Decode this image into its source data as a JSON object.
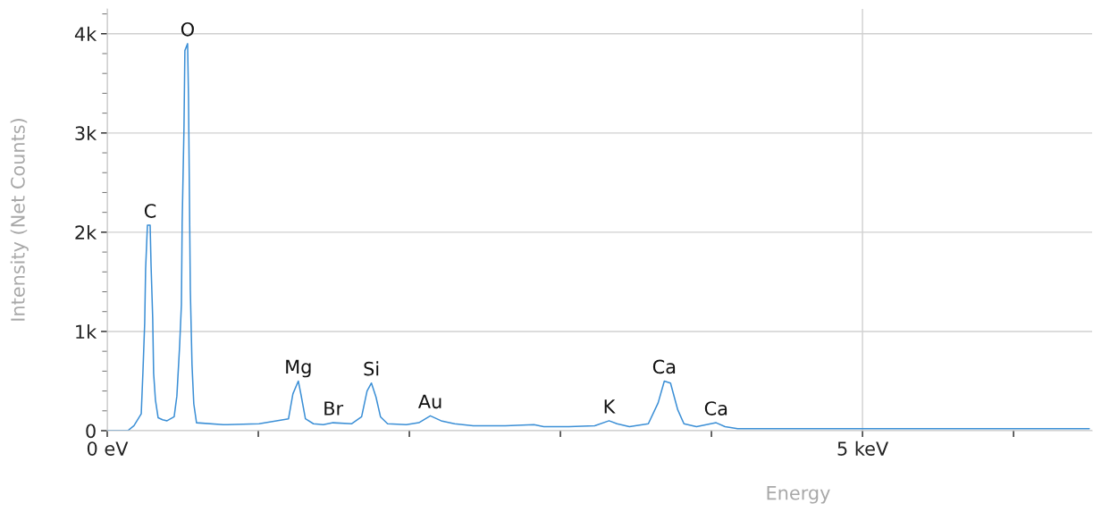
{
  "chart_data": {
    "type": "line",
    "xlabel": "Energy",
    "ylabel": "Intensity (Net Counts)",
    "xlim": [
      0,
      6.52
    ],
    "ylim": [
      0,
      4250
    ],
    "xticks": [
      {
        "value": 0,
        "label": "0 eV"
      },
      {
        "value": 1,
        "label": null
      },
      {
        "value": 2,
        "label": null
      },
      {
        "value": 3,
        "label": null
      },
      {
        "value": 4,
        "label": null
      },
      {
        "value": 5,
        "label": "5 keV"
      },
      {
        "value": 6,
        "label": null
      }
    ],
    "yticks": [
      {
        "value": 0,
        "label": "0"
      },
      {
        "value": 1000,
        "label": "1k"
      },
      {
        "value": 2000,
        "label": "2k"
      },
      {
        "value": 3000,
        "label": "3k"
      },
      {
        "value": 4000,
        "label": "4k"
      }
    ],
    "grid": true,
    "marker": "none",
    "line_style": "solid",
    "series": [
      {
        "color": "#3b8fd6",
        "x": [
          0.0,
          0.136,
          0.177,
          0.225,
          0.236,
          0.248,
          0.254,
          0.266,
          0.284,
          0.29,
          0.301,
          0.307,
          0.319,
          0.337,
          0.366,
          0.396,
          0.443,
          0.461,
          0.479,
          0.491,
          0.496,
          0.508,
          0.514,
          0.532,
          0.538,
          0.55,
          0.561,
          0.573,
          0.591,
          0.768,
          1.005,
          1.2,
          1.229,
          1.265,
          1.283,
          1.312,
          1.365,
          1.43,
          1.495,
          1.619,
          1.684,
          1.72,
          1.749,
          1.779,
          1.809,
          1.856,
          1.98,
          2.063,
          2.139,
          2.21,
          2.299,
          2.423,
          2.636,
          2.825,
          2.89,
          3.056,
          3.227,
          3.322,
          3.375,
          3.457,
          3.582,
          3.647,
          3.688,
          3.729,
          3.777,
          3.818,
          3.901,
          3.966,
          4.031,
          4.09,
          4.173,
          4.61,
          5.201,
          5.792,
          6.5
        ],
        "values": [
          0,
          0,
          50,
          170,
          580,
          1090,
          1630,
          2070,
          2070,
          1670,
          1130,
          580,
          310,
          130,
          110,
          100,
          140,
          350,
          850,
          1270,
          2100,
          3050,
          3830,
          3900,
          3350,
          1420,
          670,
          270,
          80,
          60,
          70,
          120,
          370,
          500,
          360,
          120,
          70,
          60,
          80,
          70,
          140,
          400,
          480,
          340,
          140,
          70,
          60,
          80,
          150,
          100,
          70,
          50,
          50,
          60,
          40,
          40,
          50,
          100,
          70,
          40,
          70,
          280,
          500,
          480,
          210,
          70,
          40,
          60,
          80,
          40,
          20,
          20,
          20,
          20,
          20
        ]
      }
    ],
    "annotations": [
      {
        "text": "C",
        "x": 0.284,
        "y": 2070
      },
      {
        "text": "O",
        "x": 0.532,
        "y": 3900
      },
      {
        "text": "Mg",
        "x": 1.265,
        "y": 500
      },
      {
        "text": "Br",
        "x": 1.495,
        "y": 80
      },
      {
        "text": "Si",
        "x": 1.749,
        "y": 480
      },
      {
        "text": "Au",
        "x": 2.139,
        "y": 150
      },
      {
        "text": "K",
        "x": 3.322,
        "y": 100
      },
      {
        "text": "Ca",
        "x": 3.688,
        "y": 500
      },
      {
        "text": "Ca",
        "x": 4.031,
        "y": 80
      }
    ]
  }
}
